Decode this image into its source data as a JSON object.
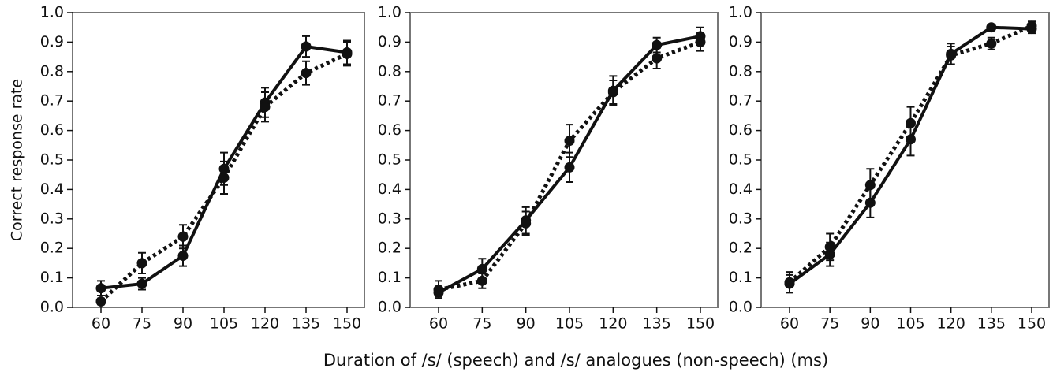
{
  "chart_data": [
    {
      "type": "line",
      "ylabel": "Correct response rate",
      "categories": [
        "60",
        "75",
        "90",
        "105",
        "120",
        "135",
        "150"
      ],
      "ylim": [
        0,
        1
      ],
      "yticks": [
        {
          "value": 0,
          "label": "0.0"
        },
        0.1,
        0.2,
        0.3,
        0.4,
        0.5,
        0.6,
        0.7,
        0.8,
        0.9,
        {
          "value": 1,
          "label": "1.0"
        }
      ],
      "series": [
        {
          "color": "#111111",
          "dash": "solid",
          "values": [
            0.065,
            0.08,
            0.175,
            0.47,
            0.695,
            0.885,
            0.865
          ],
          "errors": [
            0.025,
            0.02,
            0.035,
            0.055,
            0.05,
            0.035,
            0.04
          ]
        },
        {
          "color": "#111111",
          "dash": "dotted",
          "values": [
            0.02,
            0.15,
            0.24,
            0.44,
            0.68,
            0.795,
            0.86
          ],
          "errors": [
            0.01,
            0.035,
            0.04,
            0.055,
            0.05,
            0.04,
            0.04
          ]
        }
      ]
    },
    {
      "type": "line",
      "xlabel": "Duration of /s/ (speech) and /s/ analogues (non-speech) (ms)",
      "categories": [
        "60",
        "75",
        "90",
        "105",
        "120",
        "135",
        "150"
      ],
      "ylim": [
        0,
        1
      ],
      "yticks": [
        {
          "value": 0,
          "label": "0.0"
        },
        0.1,
        0.2,
        0.3,
        0.4,
        0.5,
        0.6,
        0.7,
        0.8,
        0.9,
        {
          "value": 1,
          "label": "1.0"
        }
      ],
      "series": [
        {
          "color": "#111111",
          "dash": "solid",
          "values": [
            0.05,
            0.13,
            0.295,
            0.475,
            0.735,
            0.89,
            0.92
          ],
          "errors": [
            0.015,
            0.035,
            0.045,
            0.05,
            0.05,
            0.025,
            0.03
          ]
        },
        {
          "color": "#111111",
          "dash": "dotted",
          "values": [
            0.06,
            0.09,
            0.285,
            0.565,
            0.73,
            0.845,
            0.9
          ],
          "errors": [
            0.03,
            0.025,
            0.04,
            0.055,
            0.04,
            0.035,
            0.03
          ]
        }
      ]
    },
    {
      "type": "line",
      "categories": [
        "60",
        "75",
        "90",
        "105",
        "120",
        "135",
        "150"
      ],
      "ylim": [
        0,
        1
      ],
      "yticks": [
        {
          "value": 0,
          "label": "0.0"
        },
        0.1,
        0.2,
        0.3,
        0.4,
        0.5,
        0.6,
        0.7,
        0.8,
        0.9,
        {
          "value": 1,
          "label": "1.0"
        }
      ],
      "series": [
        {
          "color": "#111111",
          "dash": "solid",
          "values": [
            0.08,
            0.18,
            0.355,
            0.57,
            0.86,
            0.95,
            0.945
          ],
          "errors": [
            0.03,
            0.04,
            0.05,
            0.055,
            0.035,
            0.01,
            0.015
          ]
        },
        {
          "color": "#111111",
          "dash": "dotted",
          "values": [
            0.085,
            0.205,
            0.415,
            0.625,
            0.855,
            0.895,
            0.955
          ],
          "errors": [
            0.035,
            0.045,
            0.055,
            0.055,
            0.03,
            0.02,
            0.015
          ]
        }
      ]
    }
  ]
}
